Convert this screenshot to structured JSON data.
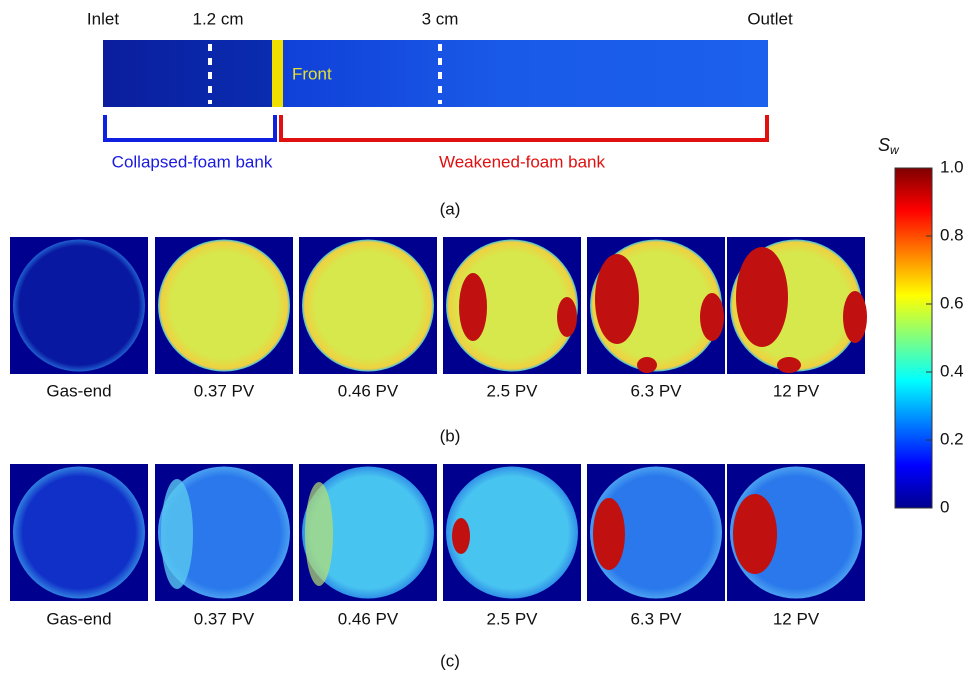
{
  "panel_a": {
    "labels": {
      "inlet": "Inlet",
      "position_1": "1.2 cm",
      "position_2": "3 cm",
      "outlet": "Outlet",
      "front": "Front",
      "collapsed_bank": "Collapsed-foam bank",
      "weakened_bank": "Weakened-foam bank"
    },
    "caption": "(a)"
  },
  "panel_b": {
    "images": [
      "Gas-end",
      "0.37 PV",
      "0.46 PV",
      "2.5 PV",
      "6.3 PV",
      "12 PV"
    ],
    "caption": "(b)"
  },
  "panel_c": {
    "images": [
      "Gas-end",
      "0.37 PV",
      "0.46 PV",
      "2.5 PV",
      "6.3 PV",
      "12 PV"
    ],
    "caption": "(c)"
  },
  "colorbar": {
    "label": "S",
    "label_subscript": "w",
    "ticks": [
      0,
      0.2,
      0.4,
      0.6,
      0.8,
      {
        "value": 1,
        "label": "1.0"
      }
    ]
  }
}
